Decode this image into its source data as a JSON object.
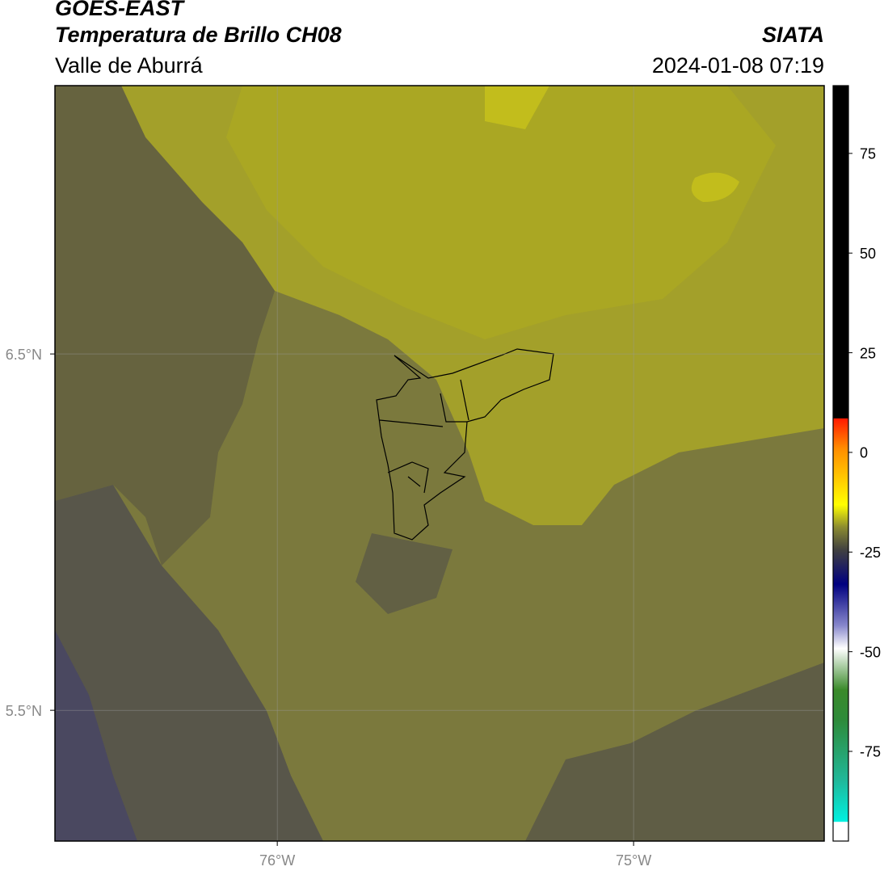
{
  "header": {
    "title": "GOES-EAST",
    "subtitle": "Temperatura de Brillo CH08",
    "region": "Valle de Aburrá",
    "source": "SIATA",
    "datetime": "2024-01-08 07:19"
  },
  "map": {
    "lon_range": [
      -76.624,
      -74.465
    ],
    "lat_range": [
      5.133,
      7.253
    ],
    "lat_ticks": [
      {
        "value": 6.5,
        "label": "6.5°N"
      },
      {
        "value": 5.5,
        "label": "5.5°N"
      }
    ],
    "lon_ticks": [
      {
        "value": -76,
        "label": "76°W"
      },
      {
        "value": -75,
        "label": "75°W"
      }
    ]
  },
  "colorbar": {
    "range": [
      -97.5,
      92
    ],
    "ticks": [
      75,
      50,
      25,
      0,
      -25,
      -50,
      -75
    ]
  }
}
